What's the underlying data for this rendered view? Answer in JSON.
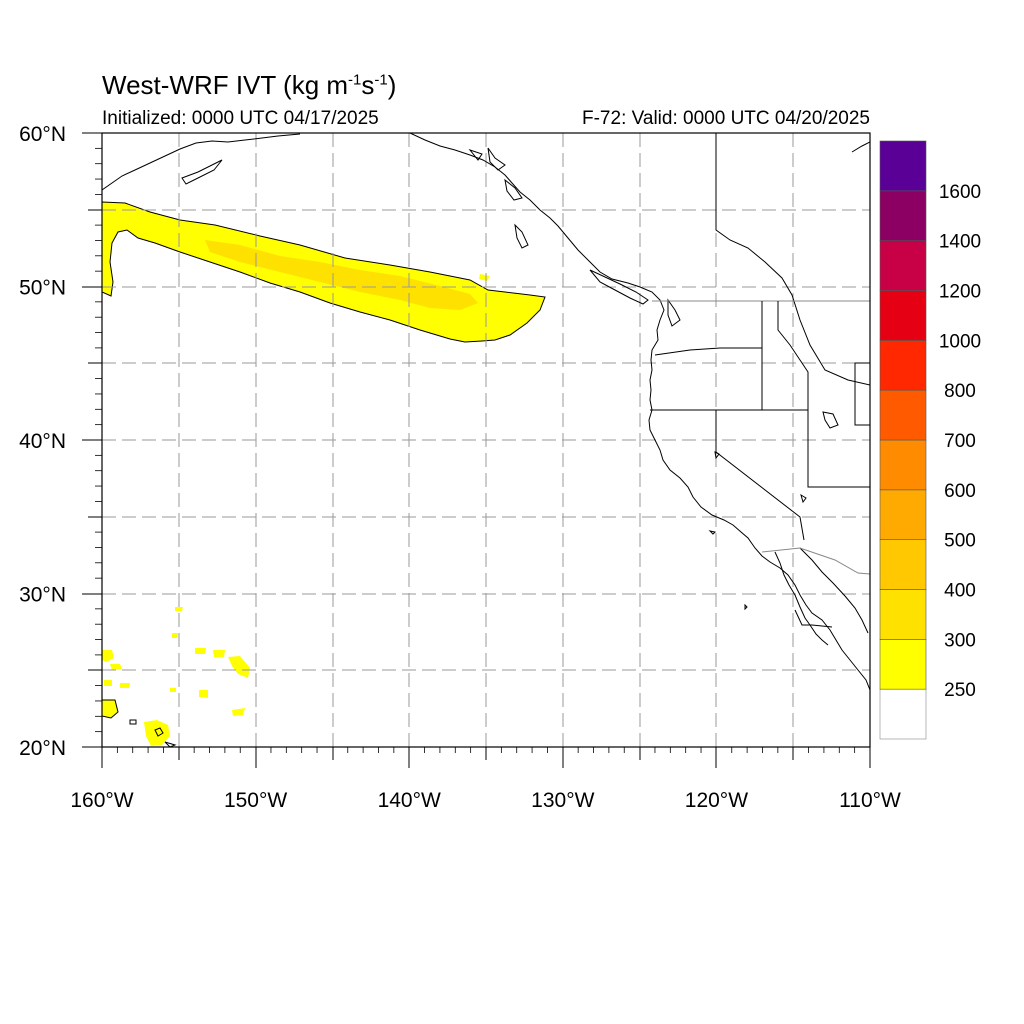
{
  "title": {
    "prefix": "West-WRF IVT (kg m",
    "exp1": "-1",
    "mid": "s",
    "exp2": "-1",
    "suffix": ")"
  },
  "subtitle_left": "Initialized: 0000 UTC 04/17/2025",
  "subtitle_right": "F-72: Valid: 0000 UTC 04/20/2025",
  "map": {
    "lon_range": [
      -160,
      -110
    ],
    "lat_range": [
      20,
      60
    ],
    "lat_labels": [
      {
        "lat": 60,
        "text": "60°N"
      },
      {
        "lat": 50,
        "text": "50°N"
      },
      {
        "lat": 40,
        "text": "40°N"
      },
      {
        "lat": 30,
        "text": "30°N"
      },
      {
        "lat": 20,
        "text": "20°N"
      }
    ],
    "lon_labels": [
      {
        "lon": -160,
        "text": "160°W"
      },
      {
        "lon": -150,
        "text": "150°W"
      },
      {
        "lon": -140,
        "text": "140°W"
      },
      {
        "lon": -130,
        "text": "130°W"
      },
      {
        "lon": -120,
        "text": "120°W"
      },
      {
        "lon": -110,
        "text": "110°W"
      }
    ],
    "gridlines": "dashed, every 5 degrees"
  },
  "colorbar": {
    "levels": [
      "250",
      "300",
      "400",
      "500",
      "600",
      "700",
      "800",
      "1000",
      "1200",
      "1400",
      "1600"
    ],
    "colors": [
      "#ffffff",
      "#ffff00",
      "#ffe100",
      "#ffc800",
      "#ffaa00",
      "#ff8c00",
      "#ff5a00",
      "#ff2800",
      "#e60014",
      "#c80046",
      "#8c0064",
      "#5a0096"
    ]
  },
  "features": {
    "land_outline_color": "#000000",
    "ivt_contour_color": "#000000"
  }
}
